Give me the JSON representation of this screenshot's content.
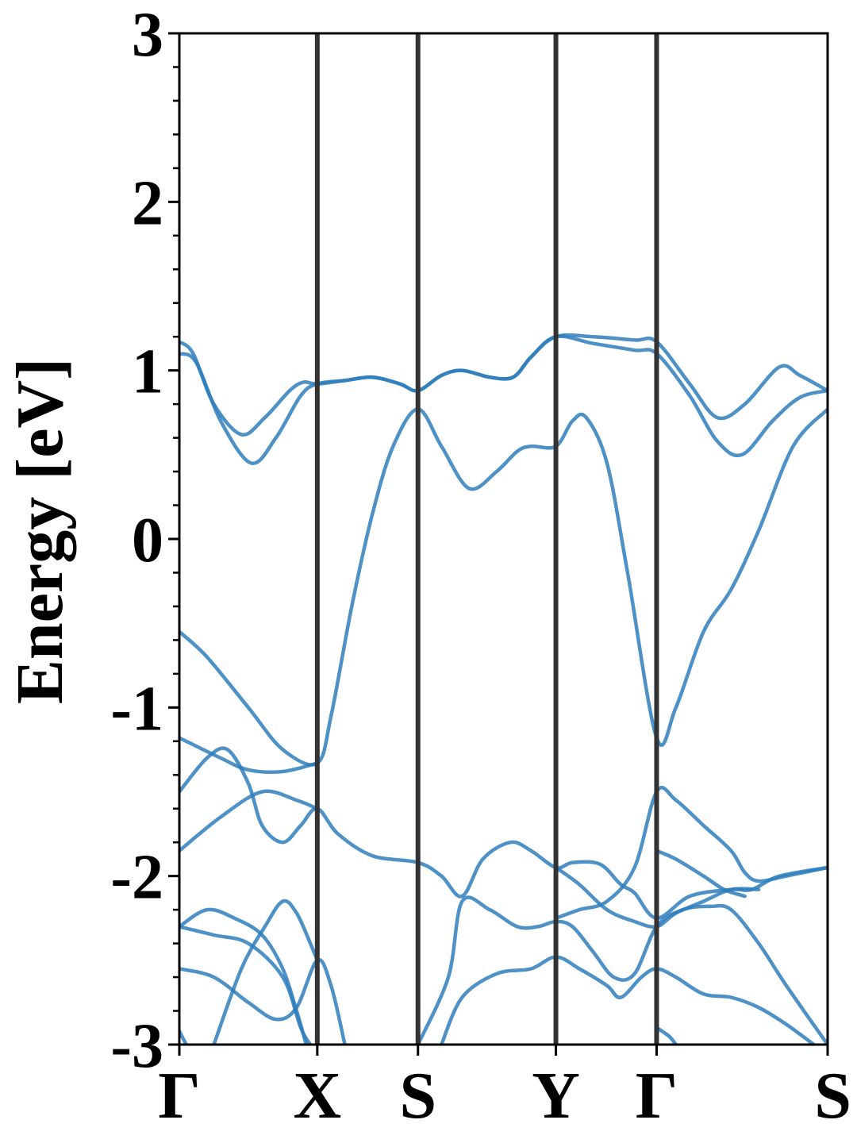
{
  "chart_data": {
    "type": "line",
    "title": "",
    "xlabel": "",
    "ylabel": "Energy [eV]",
    "ylim": [
      -3,
      3
    ],
    "xlim": [
      0,
      4.7
    ],
    "grid": false,
    "legend": "none",
    "line_color": "#2e7ebc",
    "kpath_line_color": "#333333",
    "y_ticks": [
      {
        "value": 3,
        "label": "3"
      },
      {
        "value": 2,
        "label": "2"
      },
      {
        "value": 1,
        "label": "1"
      },
      {
        "value": 0,
        "label": "0"
      },
      {
        "value": -1,
        "label": "-1"
      },
      {
        "value": -2,
        "label": "-2"
      },
      {
        "value": -3,
        "label": "-3"
      }
    ],
    "k_points": [
      {
        "x": 0.0,
        "label": "Γ"
      },
      {
        "x": 1.0,
        "label": "X"
      },
      {
        "x": 1.73,
        "label": "S"
      },
      {
        "x": 2.73,
        "label": "Y"
      },
      {
        "x": 3.46,
        "label": "Γ"
      },
      {
        "x": 4.7,
        "label": "S"
      }
    ],
    "series": [
      {
        "points": [
          [
            0,
            1.17
          ],
          [
            0.1,
            1.1
          ],
          [
            0.25,
            0.8
          ],
          [
            0.45,
            0.62
          ],
          [
            0.62,
            0.72
          ],
          [
            0.8,
            0.88
          ],
          [
            0.9,
            0.93
          ],
          [
            1.0,
            0.92
          ],
          [
            1.2,
            0.94
          ],
          [
            1.4,
            0.96
          ],
          [
            1.6,
            0.92
          ],
          [
            1.73,
            0.88
          ],
          [
            1.9,
            0.97
          ],
          [
            2.05,
            1.0
          ],
          [
            2.25,
            0.96
          ],
          [
            2.42,
            0.96
          ],
          [
            2.55,
            1.08
          ],
          [
            2.73,
            1.2
          ],
          [
            3.0,
            1.2
          ],
          [
            3.3,
            1.18
          ],
          [
            3.46,
            1.17
          ],
          [
            3.7,
            0.92
          ],
          [
            3.9,
            0.72
          ],
          [
            4.1,
            0.8
          ],
          [
            4.35,
            1.02
          ],
          [
            4.5,
            0.97
          ],
          [
            4.7,
            0.88
          ]
        ]
      },
      {
        "points": [
          [
            0,
            1.1
          ],
          [
            0.12,
            1.05
          ],
          [
            0.3,
            0.7
          ],
          [
            0.52,
            0.45
          ],
          [
            0.7,
            0.6
          ],
          [
            0.88,
            0.85
          ],
          [
            1.0,
            0.92
          ],
          [
            1.2,
            0.94
          ],
          [
            1.4,
            0.96
          ],
          [
            1.6,
            0.92
          ],
          [
            1.73,
            0.88
          ],
          [
            1.9,
            0.97
          ],
          [
            2.05,
            1.0
          ],
          [
            2.25,
            0.96
          ],
          [
            2.42,
            0.96
          ],
          [
            2.55,
            1.08
          ],
          [
            2.73,
            1.2
          ],
          [
            3.0,
            1.16
          ],
          [
            3.3,
            1.12
          ],
          [
            3.46,
            1.1
          ],
          [
            3.7,
            0.85
          ],
          [
            3.9,
            0.58
          ],
          [
            4.08,
            0.5
          ],
          [
            4.3,
            0.7
          ],
          [
            4.5,
            0.84
          ],
          [
            4.7,
            0.88
          ]
        ]
      },
      {
        "points": [
          [
            0,
            -0.55
          ],
          [
            0.2,
            -0.7
          ],
          [
            0.5,
            -1.0
          ],
          [
            0.75,
            -1.25
          ],
          [
            1.0,
            -1.33
          ],
          [
            1.1,
            -1.05
          ],
          [
            1.25,
            -0.4
          ],
          [
            1.4,
            0.15
          ],
          [
            1.55,
            0.55
          ],
          [
            1.73,
            0.77
          ],
          [
            1.9,
            0.55
          ],
          [
            2.1,
            0.3
          ],
          [
            2.3,
            0.4
          ],
          [
            2.45,
            0.52
          ],
          [
            2.55,
            0.55
          ],
          [
            2.73,
            0.55
          ],
          [
            2.85,
            0.7
          ],
          [
            2.95,
            0.72
          ],
          [
            3.1,
            0.45
          ],
          [
            3.25,
            -0.2
          ],
          [
            3.46,
            -1.18
          ],
          [
            3.6,
            -1.0
          ],
          [
            3.8,
            -0.55
          ],
          [
            4.0,
            -0.3
          ],
          [
            4.2,
            0.05
          ],
          [
            4.45,
            0.55
          ],
          [
            4.7,
            0.77
          ]
        ]
      },
      {
        "points": [
          [
            0,
            -1.18
          ],
          [
            0.3,
            -1.3
          ],
          [
            0.5,
            -1.37
          ],
          [
            0.75,
            -1.38
          ],
          [
            1.0,
            -1.33
          ]
        ]
      },
      {
        "points": [
          [
            0,
            -1.5
          ],
          [
            0.2,
            -1.3
          ],
          [
            0.35,
            -1.25
          ],
          [
            0.5,
            -1.45
          ],
          [
            0.6,
            -1.7
          ],
          [
            0.75,
            -1.8
          ],
          [
            0.88,
            -1.7
          ],
          [
            1.0,
            -1.6
          ],
          [
            1.15,
            -1.75
          ],
          [
            1.4,
            -1.88
          ],
          [
            1.73,
            -1.92
          ],
          [
            1.9,
            -2.0
          ],
          [
            2.05,
            -2.12
          ],
          [
            2.2,
            -1.9
          ],
          [
            2.4,
            -1.8
          ],
          [
            2.55,
            -1.85
          ],
          [
            2.73,
            -1.95
          ],
          [
            2.85,
            -1.92
          ],
          [
            3.05,
            -1.93
          ],
          [
            3.2,
            -2.05
          ],
          [
            3.3,
            -2.1
          ],
          [
            3.46,
            -2.25
          ],
          [
            3.7,
            -2.12
          ],
          [
            4.0,
            -2.08
          ],
          [
            4.15,
            -2.08
          ],
          [
            4.35,
            -2.0
          ],
          [
            4.7,
            -1.95
          ]
        ]
      },
      {
        "points": [
          [
            0,
            -1.85
          ],
          [
            0.3,
            -1.65
          ],
          [
            0.6,
            -1.5
          ],
          [
            0.85,
            -1.55
          ],
          [
            1.0,
            -1.6
          ]
        ]
      },
      {
        "points": [
          [
            1.73,
            -3.0
          ],
          [
            1.95,
            -2.6
          ],
          [
            2.05,
            -2.15
          ],
          [
            2.25,
            -2.2
          ],
          [
            2.45,
            -2.3
          ],
          [
            2.6,
            -2.3
          ],
          [
            2.73,
            -2.27
          ],
          [
            2.85,
            -2.3
          ],
          [
            3.0,
            -2.45
          ],
          [
            3.15,
            -2.6
          ],
          [
            3.3,
            -2.58
          ],
          [
            3.46,
            -2.3
          ],
          [
            3.65,
            -2.2
          ],
          [
            3.85,
            -2.18
          ],
          [
            4.0,
            -2.2
          ],
          [
            4.2,
            -2.4
          ],
          [
            4.4,
            -2.65
          ],
          [
            4.7,
            -3.0
          ]
        ]
      },
      {
        "points": [
          [
            1.9,
            -3.0
          ],
          [
            2.05,
            -2.72
          ],
          [
            2.3,
            -2.58
          ],
          [
            2.55,
            -2.55
          ],
          [
            2.73,
            -2.48
          ],
          [
            2.9,
            -2.55
          ],
          [
            3.1,
            -2.65
          ],
          [
            3.2,
            -2.72
          ],
          [
            3.35,
            -2.6
          ],
          [
            3.46,
            -2.55
          ],
          [
            3.6,
            -2.6
          ],
          [
            3.8,
            -2.7
          ],
          [
            4.0,
            -2.72
          ],
          [
            4.2,
            -2.78
          ],
          [
            4.4,
            -2.88
          ],
          [
            4.6,
            -3.0
          ]
        ]
      },
      {
        "points": [
          [
            2.73,
            -1.95
          ],
          [
            2.9,
            -2.05
          ],
          [
            3.1,
            -2.2
          ],
          [
            3.3,
            -2.27
          ],
          [
            3.46,
            -2.3
          ],
          [
            3.6,
            -2.22
          ],
          [
            3.8,
            -2.15
          ],
          [
            4.0,
            -2.08
          ],
          [
            4.2,
            -2.08
          ]
        ]
      },
      {
        "points": [
          [
            2.73,
            -2.25
          ],
          [
            2.9,
            -2.2
          ],
          [
            3.1,
            -2.15
          ],
          [
            3.3,
            -1.95
          ],
          [
            3.46,
            -1.5
          ],
          [
            3.6,
            -1.55
          ],
          [
            3.8,
            -1.7
          ],
          [
            4.0,
            -1.85
          ],
          [
            4.1,
            -1.98
          ],
          [
            4.2,
            -2.03
          ],
          [
            4.4,
            -2.0
          ],
          [
            4.7,
            -1.95
          ]
        ]
      },
      {
        "points": [
          [
            3.46,
            -1.85
          ],
          [
            3.6,
            -1.9
          ],
          [
            3.8,
            -2.0
          ],
          [
            3.95,
            -2.08
          ],
          [
            4.1,
            -2.12
          ]
        ]
      },
      {
        "points": [
          [
            3.46,
            -2.9
          ],
          [
            3.55,
            -2.95
          ],
          [
            3.6,
            -3.0
          ]
        ]
      },
      {
        "points": [
          [
            0,
            -2.3
          ],
          [
            0.25,
            -2.35
          ],
          [
            0.5,
            -2.4
          ],
          [
            0.75,
            -2.6
          ],
          [
            0.88,
            -2.9
          ],
          [
            0.95,
            -3.0
          ]
        ]
      },
      {
        "points": [
          [
            0,
            -2.3
          ],
          [
            0.2,
            -2.2
          ],
          [
            0.4,
            -2.25
          ],
          [
            0.6,
            -2.35
          ],
          [
            0.75,
            -2.55
          ],
          [
            0.85,
            -2.8
          ],
          [
            0.92,
            -3.0
          ]
        ]
      },
      {
        "points": [
          [
            0,
            -2.55
          ],
          [
            0.25,
            -2.6
          ],
          [
            0.5,
            -2.75
          ],
          [
            0.7,
            -2.85
          ],
          [
            0.85,
            -2.78
          ],
          [
            1.0,
            -2.5
          ],
          [
            1.1,
            -2.65
          ],
          [
            1.2,
            -3.0
          ]
        ]
      },
      {
        "points": [
          [
            0.25,
            -3.0
          ],
          [
            0.45,
            -2.55
          ],
          [
            0.62,
            -2.3
          ],
          [
            0.75,
            -2.15
          ],
          [
            0.85,
            -2.22
          ],
          [
            0.95,
            -2.4
          ],
          [
            1.0,
            -2.5
          ]
        ]
      },
      {
        "points": [
          [
            0,
            -2.92
          ],
          [
            0.05,
            -3.0
          ]
        ]
      }
    ]
  }
}
